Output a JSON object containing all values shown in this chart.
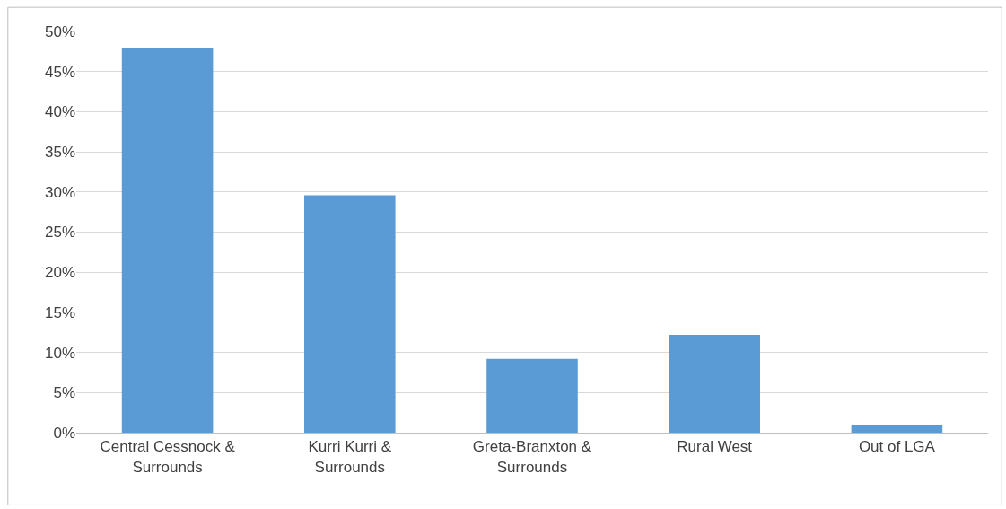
{
  "chart_data": {
    "type": "bar",
    "categories": [
      "Central Cessnock & Surrounds",
      "Kurri Kurri & Surrounds",
      "Greta-Branxton & Surrounds",
      "Rural West",
      "Out of LGA"
    ],
    "values": [
      48.0,
      29.6,
      9.2,
      12.2,
      1.0
    ],
    "color": "#5b9bd5",
    "ylim": [
      0,
      50
    ],
    "yticks": [
      {
        "value": 0,
        "label": "0%"
      },
      {
        "value": 5,
        "label": "5%"
      },
      {
        "value": 10,
        "label": "10%"
      },
      {
        "value": 15,
        "label": "15%"
      },
      {
        "value": 20,
        "label": "20%"
      },
      {
        "value": 25,
        "label": "25%"
      },
      {
        "value": 30,
        "label": "30%"
      },
      {
        "value": 35,
        "label": "35%"
      },
      {
        "value": 40,
        "label": "40%"
      },
      {
        "value": 45,
        "label": "45%"
      },
      {
        "value": 50,
        "label": "50%"
      }
    ],
    "grid": "y"
  }
}
